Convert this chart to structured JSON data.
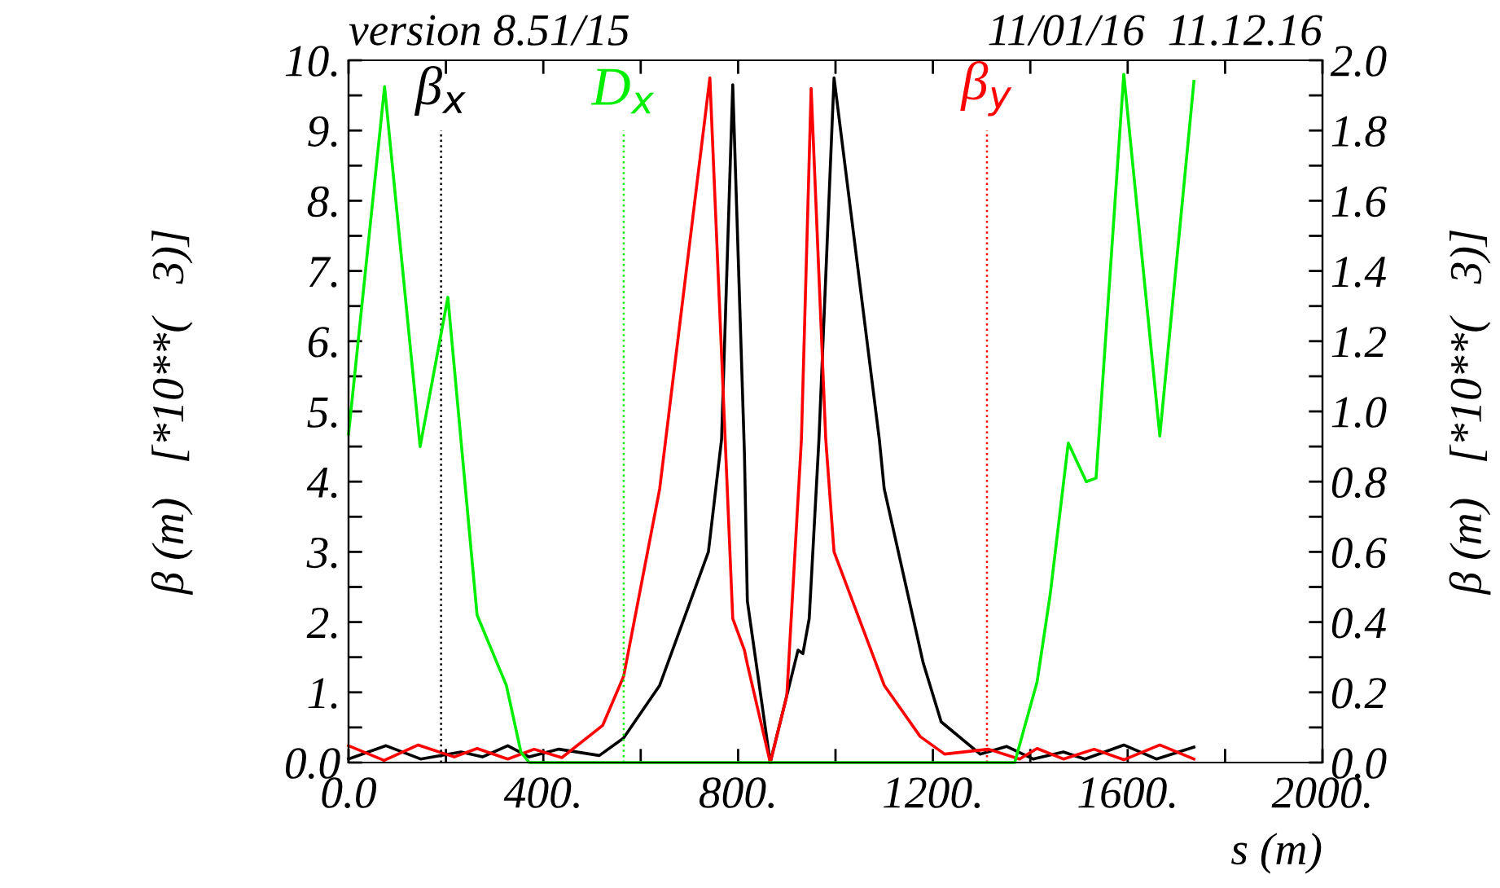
{
  "chart_data": {
    "type": "line",
    "xlabel": "s (m)",
    "ylabel": "β (m)   [*10**(   3)]",
    "y2label": "β (m)   [*10**(   3)]",
    "annotations": [
      "version 8.51/15",
      "11/01/16  11.12.16"
    ],
    "series": [
      {
        "color": "#000000",
        "x": [
          0,
          77,
          148,
          231,
          275,
          327,
          371,
          432,
          515,
          565,
          639,
          739,
          766,
          789,
          813,
          819,
          866,
          923,
          933,
          946,
          966,
          997,
          1090,
          1100,
          1180,
          1217,
          1297,
          1351,
          1406,
          1468,
          1512,
          1592,
          1659,
          1736
        ],
        "values": [
          0.05,
          0.24,
          0.05,
          0.15,
          0.08,
          0.24,
          0.08,
          0.19,
          0.1,
          0.35,
          1.1,
          3.0,
          4.6,
          9.65,
          4.4,
          2.3,
          0,
          1.6,
          1.55,
          2.05,
          4.6,
          9.75,
          4.6,
          3.9,
          1.42,
          0.58,
          0.12,
          0.23,
          0.05,
          0.15,
          0.05,
          0.25,
          0.05,
          0.22
        ]
      },
      {
        "color": "#ff0000",
        "x": [
          0,
          73,
          143,
          217,
          264,
          327,
          381,
          438,
          522,
          565,
          639,
          742,
          789,
          813,
          819,
          866,
          900,
          930,
          950,
          980,
          997,
          1100,
          1174,
          1224,
          1314,
          1378,
          1414,
          1468,
          1531,
          1592,
          1666,
          1736
        ],
        "values": [
          0.24,
          0.03,
          0.25,
          0.08,
          0.2,
          0.05,
          0.19,
          0.07,
          0.53,
          1.23,
          3.9,
          9.75,
          2.05,
          1.6,
          1.4,
          0,
          0.95,
          4.6,
          9.6,
          4.6,
          3.0,
          1.1,
          0.37,
          0.12,
          0.19,
          0.05,
          0.2,
          0.05,
          0.19,
          0.04,
          0.25,
          0.05
        ]
      },
      {
        "color": "#00ee00",
        "axis": "y2",
        "x": [
          0,
          74,
          147,
          204,
          231,
          264,
          324,
          354,
          371,
          1368,
          1414,
          1441,
          1478,
          1515,
          1535,
          1592,
          1666,
          1736
        ],
        "values": [
          0.935,
          1.925,
          0.9,
          1.325,
          0.916,
          0.42,
          0.22,
          0.03,
          0,
          0,
          0.23,
          0.48,
          0.91,
          0.8,
          0.81,
          1.96,
          0.93,
          1.94
        ]
      }
    ],
    "ref_lines": [
      {
        "axis": "x",
        "value": 190,
        "label": "β$_{x}$",
        "color": "#000000",
        "line_style": "dotted"
      },
      {
        "axis": "x",
        "value": 565,
        "label": "D$_{x}$",
        "color": "#00ee00",
        "line_style": "dotted"
      },
      {
        "axis": "x",
        "value": 1311,
        "label": "β$_{y}$",
        "color": "#ff0000",
        "line_style": "dotted"
      }
    ],
    "xlim": [
      0,
      2000
    ],
    "xticks": [
      {
        "value": 0,
        "label": "0.0"
      },
      {
        "value": 200,
        "label": null
      },
      {
        "value": 400,
        "label": "400."
      },
      {
        "value": 600,
        "label": null
      },
      {
        "value": 800,
        "label": "800."
      },
      {
        "value": 1000,
        "label": null
      },
      {
        "value": 1200,
        "label": "1200."
      },
      {
        "value": 1400,
        "label": null
      },
      {
        "value": 1600,
        "label": "1600."
      },
      {
        "value": 1800,
        "label": null
      },
      {
        "value": 2000,
        "label": "2000."
      }
    ],
    "ylim": [
      0,
      10
    ],
    "yticks": [
      {
        "value": 0,
        "label": "0.0"
      },
      {
        "value": 0.5,
        "label": null
      },
      {
        "value": 1,
        "label": "1."
      },
      {
        "value": 1.5,
        "label": null
      },
      {
        "value": 2,
        "label": "2."
      },
      {
        "value": 2.5,
        "label": null
      },
      {
        "value": 3,
        "label": "3."
      },
      {
        "value": 3.5,
        "label": null
      },
      {
        "value": 4,
        "label": "4."
      },
      {
        "value": 4.5,
        "label": null
      },
      {
        "value": 5,
        "label": "5."
      },
      {
        "value": 5.5,
        "label": null
      },
      {
        "value": 6,
        "label": "6."
      },
      {
        "value": 6.5,
        "label": null
      },
      {
        "value": 7,
        "label": "7."
      },
      {
        "value": 7.5,
        "label": null
      },
      {
        "value": 8,
        "label": "8."
      },
      {
        "value": 8.5,
        "label": null
      },
      {
        "value": 9,
        "label": "9."
      },
      {
        "value": 9.5,
        "label": null
      },
      {
        "value": 10,
        "label": "10."
      }
    ],
    "y2lim": [
      0,
      2
    ],
    "y2ticks": [
      {
        "value": 0,
        "label": "0.0"
      },
      {
        "value": 0.1,
        "label": null
      },
      {
        "value": 0.2,
        "label": "0.2"
      },
      {
        "value": 0.3,
        "label": null
      },
      {
        "value": 0.4,
        "label": "0.4"
      },
      {
        "value": 0.5,
        "label": null
      },
      {
        "value": 0.6,
        "label": "0.6"
      },
      {
        "value": 0.7,
        "label": null
      },
      {
        "value": 0.8,
        "label": "0.8"
      },
      {
        "value": 0.9,
        "label": null
      },
      {
        "value": 1.0,
        "label": "1.0"
      },
      {
        "value": 1.1,
        "label": null
      },
      {
        "value": 1.2,
        "label": "1.2"
      },
      {
        "value": 1.3,
        "label": null
      },
      {
        "value": 1.4,
        "label": "1.4"
      },
      {
        "value": 1.5,
        "label": null
      },
      {
        "value": 1.6,
        "label": "1.6"
      },
      {
        "value": 1.7,
        "label": null
      },
      {
        "value": 1.8,
        "label": "1.8"
      },
      {
        "value": 1.9,
        "label": null
      },
      {
        "value": 2.0,
        "label": "2.0"
      }
    ],
    "grid": false,
    "marker": "none",
    "line_style": "solid"
  }
}
